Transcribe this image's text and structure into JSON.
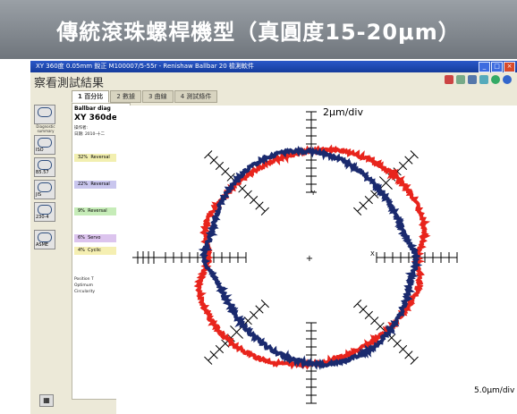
{
  "banner": {
    "title": "傳統滾珠螺桿機型（真圓度15-20μm）"
  },
  "window": {
    "title": "XY 360度 0.05mm 銳正 M100007/5-55r - Renishaw Ballbar 20 檢測軟件"
  },
  "app": {
    "header_title": "察看測試結果"
  },
  "tabs": [
    {
      "label": "1 百分比"
    },
    {
      "label": "2 數據"
    },
    {
      "label": "3 曲線"
    },
    {
      "label": "4 測試條件"
    }
  ],
  "sidebar": {
    "items": [
      {
        "label": "Summary",
        "caption": "Diagnostic summary"
      },
      {
        "label": "ISO",
        "caption": ""
      },
      {
        "label": "B5.57",
        "caption": ""
      },
      {
        "label": "JIS",
        "caption": ""
      },
      {
        "label": "230-4",
        "caption": ""
      },
      {
        "label": "ASME",
        "caption": ""
      }
    ]
  },
  "report": {
    "heading": "Ballbar diag",
    "test_name": "XY 360deg",
    "operator_label": "操作者:",
    "date_label": "日期: 2010-十二",
    "bars": [
      {
        "pct": "32%",
        "label": "Reversal",
        "color": "#f2efb0"
      },
      {
        "pct": "22%",
        "label": "Reversal",
        "color": "#c9c6ee"
      },
      {
        "pct": "9%",
        "label": "Reversal",
        "color": "#c6ecb8"
      },
      {
        "pct": "6%",
        "label": "Servo",
        "color": "#dcc4ee"
      },
      {
        "pct": "4%",
        "label": "Cyclic",
        "color": "#f5efb2"
      }
    ],
    "footer": [
      "Position T",
      "Optimum",
      "Circularity"
    ]
  },
  "plot": {
    "scale_label": "2μm/div",
    "bottom_scale": "5.0μm/div",
    "axis_x_label": "X",
    "axis_y_label": "Y",
    "colors": {
      "red": "#e8241c",
      "blue": "#1a2a6e"
    }
  }
}
